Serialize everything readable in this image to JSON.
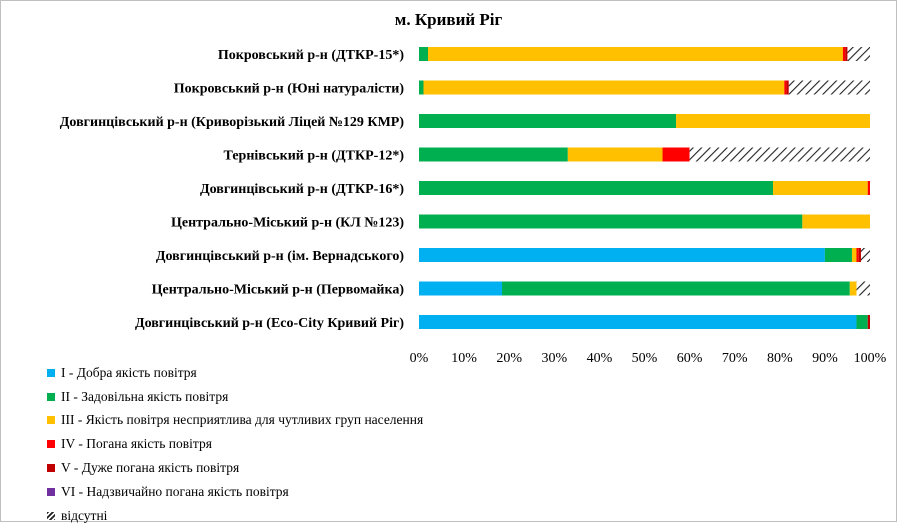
{
  "chart_data": {
    "type": "bar",
    "orientation": "horizontal",
    "stacked": "percent",
    "title": "м. Кривий Ріг",
    "categories": [
      "Покровський р-н (ДТКР-15*)",
      "Покровський р-н (Юні натуралісти)",
      "Довгинцівський р-н (Криворізький  Ліцей №129 КМР)",
      "Тернівський р-н (ДТКР-12*)",
      "Довгинцівський р-н (ДТКР-16*)",
      "Центрально-Міський р-н (КЛ №123)",
      "Довгинцівський р-н (ім. Вернадського)",
      "Центрально-Міський р-н (Первомайка)",
      "Довгинцівський р-н (Eco-City  Кривий Ріг)"
    ],
    "series": [
      {
        "name": "I - Добра якість  повітря",
        "color": "#00B0F0",
        "hatched": false,
        "values": [
          0,
          0,
          0,
          0,
          0,
          0,
          90,
          18.5,
          97
        ]
      },
      {
        "name": "II - Задовільна якість  повітря",
        "color": "#00B050",
        "hatched": false,
        "values": [
          2,
          1,
          57,
          33,
          78.5,
          85,
          6,
          77.5,
          2.5
        ]
      },
      {
        "name": "III - Якість повітря несприятлива для чутливих груп населення",
        "color": "#FFC000",
        "hatched": false,
        "values": [
          92,
          80,
          43,
          21,
          21,
          15,
          1,
          1.5,
          0
        ]
      },
      {
        "name": "IV - Погана якість  повітря",
        "color": "#FF0000",
        "hatched": false,
        "values": [
          0.5,
          0.5,
          0,
          6,
          0.5,
          0,
          0.5,
          0,
          0
        ]
      },
      {
        "name": "V - Дуже погана якість  повітря",
        "color": "#C00000",
        "hatched": false,
        "values": [
          0.5,
          0.5,
          0,
          0,
          0,
          0,
          0.5,
          0,
          0.5
        ]
      },
      {
        "name": "VI - Надзвичайно погана якість  повітря",
        "color": "#7030A0",
        "hatched": false,
        "values": [
          0,
          0,
          0,
          0,
          0,
          0,
          0,
          0,
          0
        ]
      },
      {
        "name": "відсутні",
        "color": "#222222",
        "hatched": true,
        "values": [
          5,
          18,
          0,
          40,
          0,
          0,
          2,
          3,
          0
        ]
      }
    ],
    "xlim": [
      0,
      100
    ],
    "x_ticks": [
      "0%",
      "10%",
      "20%",
      "30%",
      "40%",
      "50%",
      "60%",
      "70%",
      "80%",
      "90%",
      "100%"
    ],
    "grid": false,
    "legend_position": "bottom-left"
  }
}
